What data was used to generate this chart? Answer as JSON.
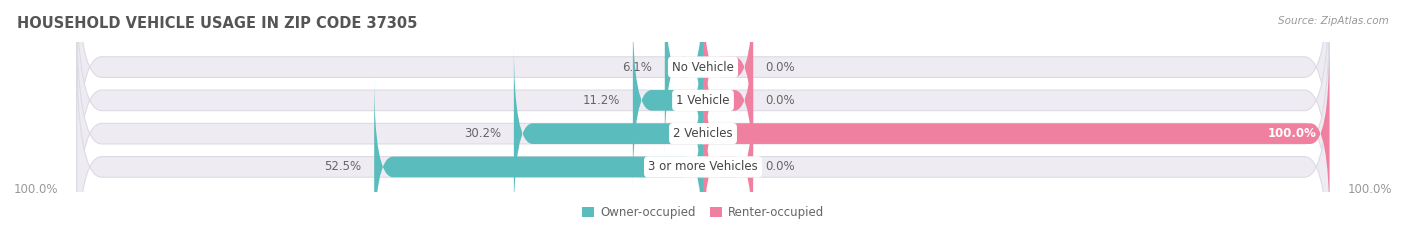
{
  "title": "HOUSEHOLD VEHICLE USAGE IN ZIP CODE 37305",
  "source": "Source: ZipAtlas.com",
  "categories": [
    "No Vehicle",
    "1 Vehicle",
    "2 Vehicles",
    "3 or more Vehicles"
  ],
  "owner_values": [
    6.1,
    11.2,
    30.2,
    52.5
  ],
  "renter_values": [
    0.0,
    0.0,
    100.0,
    0.0
  ],
  "owner_color": "#5bbcbd",
  "renter_color": "#f080a0",
  "bar_bg_color": "#eeecf2",
  "bar_bg_edge_color": "#dddae4",
  "max_value": 100.0,
  "left_label": "100.0%",
  "right_label": "100.0%",
  "legend_owner": "Owner-occupied",
  "legend_renter": "Renter-occupied",
  "title_fontsize": 10.5,
  "label_fontsize": 8.5,
  "tick_fontsize": 8.5,
  "source_fontsize": 7.5
}
